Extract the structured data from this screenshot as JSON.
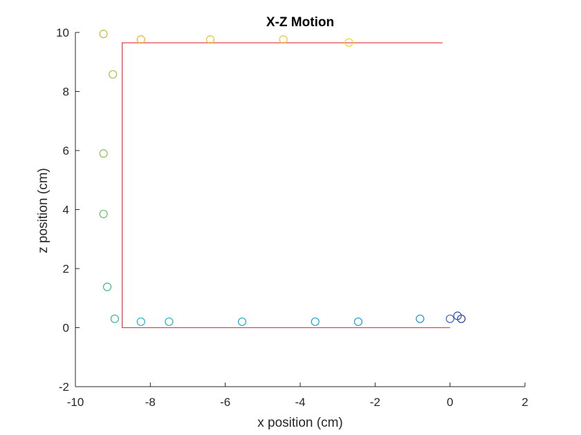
{
  "chart_data": {
    "type": "scatter",
    "title": "X-Z Motion",
    "xlabel": "x position (cm)",
    "ylabel": "z position (cm)",
    "xlim": [
      -10,
      2
    ],
    "ylim": [
      -2,
      10
    ],
    "xticks": [
      -10,
      -8,
      -6,
      -4,
      -2,
      0,
      2
    ],
    "yticks": [
      -2,
      0,
      2,
      4,
      6,
      8,
      10
    ],
    "grid": false,
    "box": false,
    "series": [
      {
        "type": "line",
        "color": "#e0454a",
        "x": [
          -0.2,
          -8.75,
          -8.75,
          0.0
        ],
        "y": [
          9.65,
          9.65,
          0.0,
          0.0
        ]
      },
      {
        "type": "scatter",
        "marker": "circle",
        "x": [
          0.3,
          0.2,
          0.0,
          -0.8,
          -2.45,
          -3.6,
          -5.55,
          -7.5,
          -8.25,
          -8.95,
          -9.15,
          -9.25,
          -9.25,
          -9.0,
          -9.25,
          -8.25,
          -6.4,
          -4.45,
          -2.7
        ],
        "y": [
          0.3,
          0.4,
          0.3,
          0.3,
          0.2,
          0.2,
          0.2,
          0.2,
          0.2,
          0.3,
          1.38,
          3.85,
          5.9,
          8.58,
          9.95,
          9.76,
          9.76,
          9.76,
          9.66
        ],
        "colors": [
          "#2e3b9a",
          "#2b4fb8",
          "#3a5fcc",
          "#1f8fd6",
          "#199cd8",
          "#16a3d6",
          "#17abd2",
          "#19b3c8",
          "#1cb8c0",
          "#2dbb9c",
          "#3bbc8a",
          "#67bd6b",
          "#8cbd55",
          "#b0bd43",
          "#c6bc3a",
          "#e2b82f",
          "#ecbd2a",
          "#f1c526",
          "#f5d21f"
        ]
      }
    ]
  }
}
